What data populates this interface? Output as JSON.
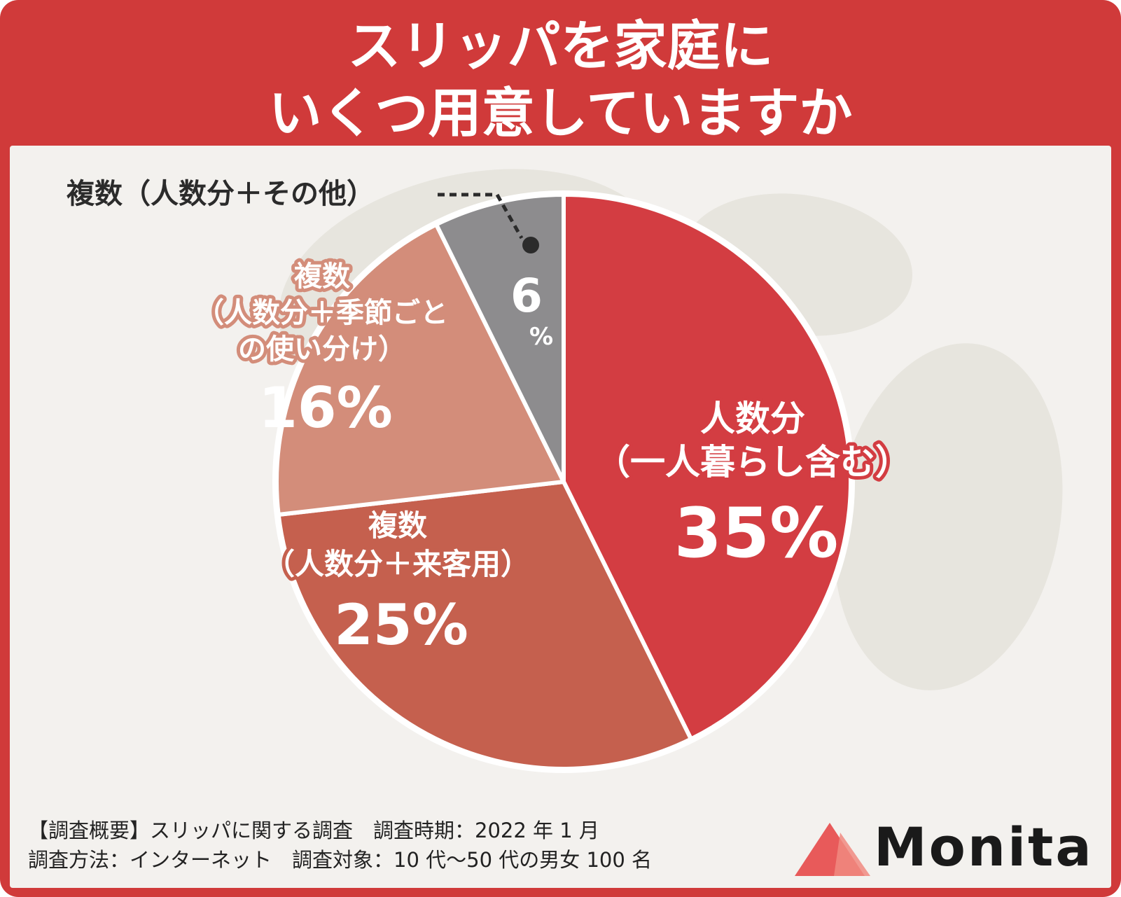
{
  "header": {
    "title_line1": "スリッパを家庭に",
    "title_line2": "いくつ用意していますか"
  },
  "chart_data": {
    "type": "pie",
    "title": "スリッパを家庭にいくつ用意していますか",
    "slices": [
      {
        "label_lines": [
          "人数分",
          "（一人暮らし含む）"
        ],
        "value": 35,
        "value_label": "35%",
        "color": "#d33d42"
      },
      {
        "label_lines": [
          "複数",
          "（人数分＋来客用）"
        ],
        "value": 25,
        "value_label": "25%",
        "color": "#c5604e"
      },
      {
        "label_lines": [
          "複数",
          "（人数分＋季節ごと",
          "の使い分け）"
        ],
        "value": 16,
        "value_label": "16%",
        "color": "#d38d7a"
      },
      {
        "label_lines": [
          "複数（人数分＋その他）"
        ],
        "value": 6,
        "value_label": "6%",
        "color": "#8d8c8e"
      }
    ],
    "legend": "none"
  },
  "footer": {
    "line1": "【調査概要】スリッパに関する調査　調査時期：2022 年 1 月",
    "line2": "調査方法：インターネット　調査対象：10 代〜50 代の男女 100 名"
  },
  "logo": {
    "text": "Monita",
    "color": "#e85a5a"
  }
}
